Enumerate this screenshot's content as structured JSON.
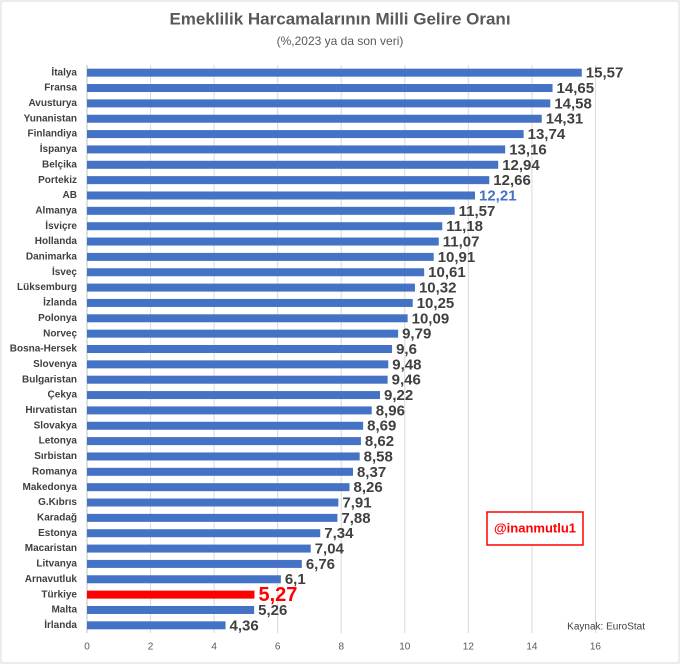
{
  "chart_data": {
    "type": "hbar",
    "title": "Emeklilik Harcamalarının Milli Gelire Oranı",
    "subtitle": "(%,2023 ya da son veri)",
    "categories": [
      "İtalya",
      "Fransa",
      "Avusturya",
      "Yunanistan",
      "Finlandiya",
      "İspanya",
      "Belçika",
      "Portekiz",
      "AB",
      "Almanya",
      "İsviçre",
      "Hollanda",
      "Danimarka",
      "İsveç",
      "Lüksemburg",
      "İzlanda",
      "Polonya",
      "Norveç",
      "Bosna-Hersek",
      "Slovenya",
      "Bulgaristan",
      "Çekya",
      "Hırvatistan",
      "Slovakya",
      "Letonya",
      "Sırbistan",
      "Romanya",
      "Makedonya",
      "G.Kıbrıs",
      "Karadağ",
      "Estonya",
      "Macaristan",
      "Litvanya",
      "Arnavutluk",
      "Türkiye",
      "Malta",
      "İrlanda"
    ],
    "values": [
      15.57,
      14.65,
      14.58,
      14.31,
      13.74,
      13.16,
      12.94,
      12.66,
      12.21,
      11.57,
      11.18,
      11.07,
      10.91,
      10.61,
      10.32,
      10.25,
      10.09,
      9.79,
      9.6,
      9.48,
      9.46,
      9.22,
      8.96,
      8.69,
      8.62,
      8.58,
      8.37,
      8.26,
      7.91,
      7.88,
      7.34,
      7.04,
      6.76,
      6.1,
      5.27,
      5.26,
      4.36
    ],
    "value_labels": [
      "15,57",
      "14,65",
      "14,58",
      "14,31",
      "13,74",
      "13,16",
      "12,94",
      "12,66",
      "12,21",
      "11,57",
      "11,18",
      "11,07",
      "10,91",
      "10,61",
      "10,32",
      "10,25",
      "10,09",
      "9,79",
      "9,6",
      "9,48",
      "9,46",
      "9,22",
      "8,96",
      "8,69",
      "8,62",
      "8,58",
      "8,37",
      "8,26",
      "7,91",
      "7,88",
      "7,34",
      "7,04",
      "6,76",
      "6,1",
      "5,27",
      "5,26",
      "4,36"
    ],
    "color": "#4472c4",
    "bar_colors": [
      "#4472c4",
      "#4472c4",
      "#4472c4",
      "#4472c4",
      "#4472c4",
      "#4472c4",
      "#4472c4",
      "#4472c4",
      "#4472c4",
      "#4472c4",
      "#4472c4",
      "#4472c4",
      "#4472c4",
      "#4472c4",
      "#4472c4",
      "#4472c4",
      "#4472c4",
      "#4472c4",
      "#4472c4",
      "#4472c4",
      "#4472c4",
      "#4472c4",
      "#4472c4",
      "#4472c4",
      "#4472c4",
      "#4472c4",
      "#4472c4",
      "#4472c4",
      "#4472c4",
      "#4472c4",
      "#4472c4",
      "#4472c4",
      "#4472c4",
      "#4472c4",
      "#ff0000",
      "#4472c4",
      "#4472c4"
    ],
    "label_colors": [
      "#404040",
      "#404040",
      "#404040",
      "#404040",
      "#404040",
      "#404040",
      "#404040",
      "#404040",
      "#4472c4",
      "#404040",
      "#404040",
      "#404040",
      "#404040",
      "#404040",
      "#404040",
      "#404040",
      "#404040",
      "#404040",
      "#404040",
      "#404040",
      "#404040",
      "#404040",
      "#404040",
      "#404040",
      "#404040",
      "#404040",
      "#404040",
      "#404040",
      "#404040",
      "#404040",
      "#404040",
      "#404040",
      "#404040",
      "#404040",
      "#ff0000",
      "#404040",
      "#404040"
    ],
    "xlim": [
      0,
      18
    ],
    "xticks": [
      0,
      2,
      4,
      6,
      8,
      10,
      12,
      14,
      16
    ],
    "grid": true,
    "annotation": "@inanmutlu1",
    "source": "Kaynak: EuroStat"
  }
}
